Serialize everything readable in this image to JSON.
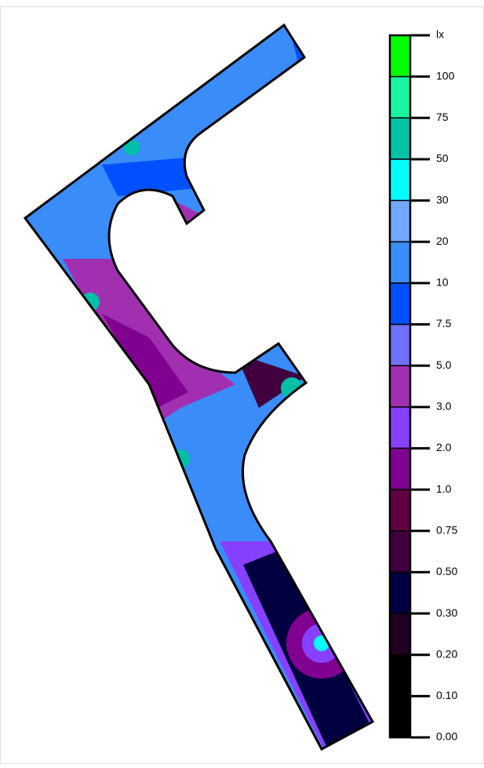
{
  "legend": {
    "labels": [
      "lx",
      "100",
      "75",
      "50",
      "30",
      "20",
      "10",
      "7.5",
      "5.0",
      "3.0",
      "2.0",
      "1.0",
      "0.75",
      "0.50",
      "0.30",
      "0.20",
      "0.10",
      "0.00"
    ],
    "colors": [
      "#00ff00",
      "#19f5a0",
      "#00c0a8",
      "#00ffff",
      "#70a8ff",
      "#3a8cf8",
      "#0050ff",
      "#7070ff",
      "#a030b0",
      "#8840ff",
      "#800090",
      "#600040",
      "#400040",
      "#000040",
      "#200020",
      "#000000",
      "#000000"
    ]
  }
}
